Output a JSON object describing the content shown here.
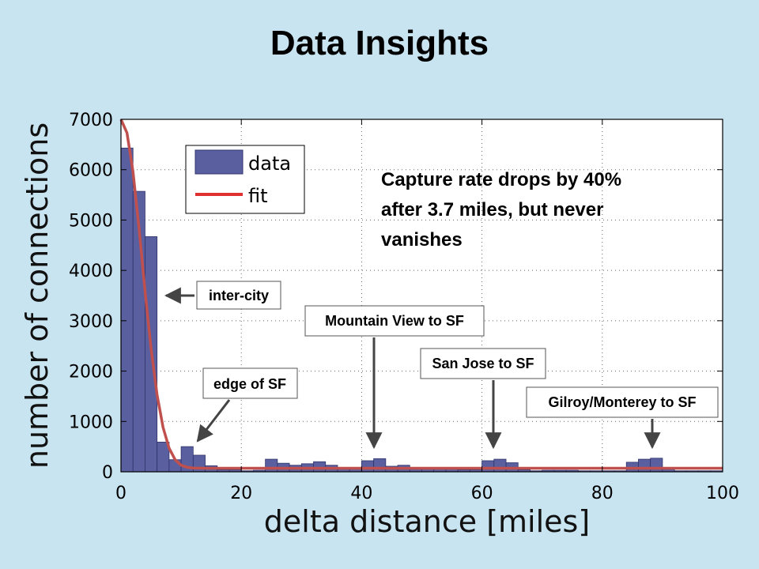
{
  "slide": {
    "title": "Data Insights"
  },
  "chart_data": {
    "type": "bar",
    "xlabel": "delta distance [miles]",
    "ylabel": "number of connections",
    "xlim": [
      0,
      100
    ],
    "ylim": [
      0,
      7000
    ],
    "xticks": [
      "0",
      "20",
      "40",
      "60",
      "80",
      "100"
    ],
    "yticks": [
      "0",
      "1000",
      "2000",
      "3000",
      "4000",
      "5000",
      "6000",
      "7000"
    ],
    "grid": true,
    "legend": {
      "position": "top-left",
      "entries": [
        "data",
        "fit"
      ]
    },
    "colors": {
      "bars": "#5a5fa0",
      "fit": "#c0504d"
    },
    "series": [
      {
        "name": "data",
        "type": "bar",
        "bin_width": 2,
        "x": [
          1,
          3,
          5,
          7,
          9,
          11,
          13,
          15,
          17,
          19,
          21,
          23,
          25,
          27,
          29,
          31,
          33,
          35,
          37,
          39,
          41,
          43,
          45,
          47,
          49,
          51,
          53,
          55,
          57,
          59,
          61,
          63,
          65,
          67,
          69,
          71,
          73,
          75,
          77,
          79,
          81,
          83,
          85,
          87,
          89,
          91,
          93,
          95,
          97,
          99
        ],
        "values": [
          6430,
          5570,
          4670,
          590,
          240,
          500,
          330,
          120,
          40,
          40,
          20,
          30,
          250,
          170,
          130,
          160,
          200,
          130,
          80,
          80,
          220,
          260,
          110,
          130,
          70,
          80,
          80,
          80,
          40,
          40,
          220,
          250,
          180,
          40,
          20,
          30,
          30,
          30,
          20,
          20,
          20,
          20,
          190,
          250,
          270,
          80,
          20,
          20,
          20,
          20
        ]
      },
      {
        "name": "fit",
        "type": "line",
        "x": [
          0,
          1,
          2,
          3,
          4,
          5,
          6,
          7,
          8,
          9,
          10,
          11,
          12,
          13,
          14,
          15,
          16,
          18,
          20,
          25,
          30,
          40,
          50,
          60,
          70,
          80,
          90,
          100
        ],
        "values": [
          7000,
          6730,
          5960,
          4840,
          3590,
          2450,
          1530,
          880,
          470,
          240,
          130,
          90,
          75,
          72,
          71,
          70,
          70,
          70,
          70,
          70,
          70,
          70,
          70,
          70,
          70,
          70,
          70,
          70
        ]
      }
    ],
    "insight_text": [
      "Capture rate drops by 40%",
      "after 3.7 miles, but never",
      "vanishes"
    ],
    "annotations": [
      {
        "label": "inter-city",
        "arrow_to": [
          7,
          3500
        ]
      },
      {
        "label": "edge of SF",
        "arrow_to": [
          13,
          600
        ]
      },
      {
        "label": "Mountain View to SF",
        "arrow_to": [
          42,
          400
        ]
      },
      {
        "label": "San Jose to SF",
        "arrow_to": [
          62,
          400
        ]
      },
      {
        "label": "Gilroy/Monterey to SF",
        "arrow_to": [
          88.5,
          400
        ]
      }
    ]
  }
}
